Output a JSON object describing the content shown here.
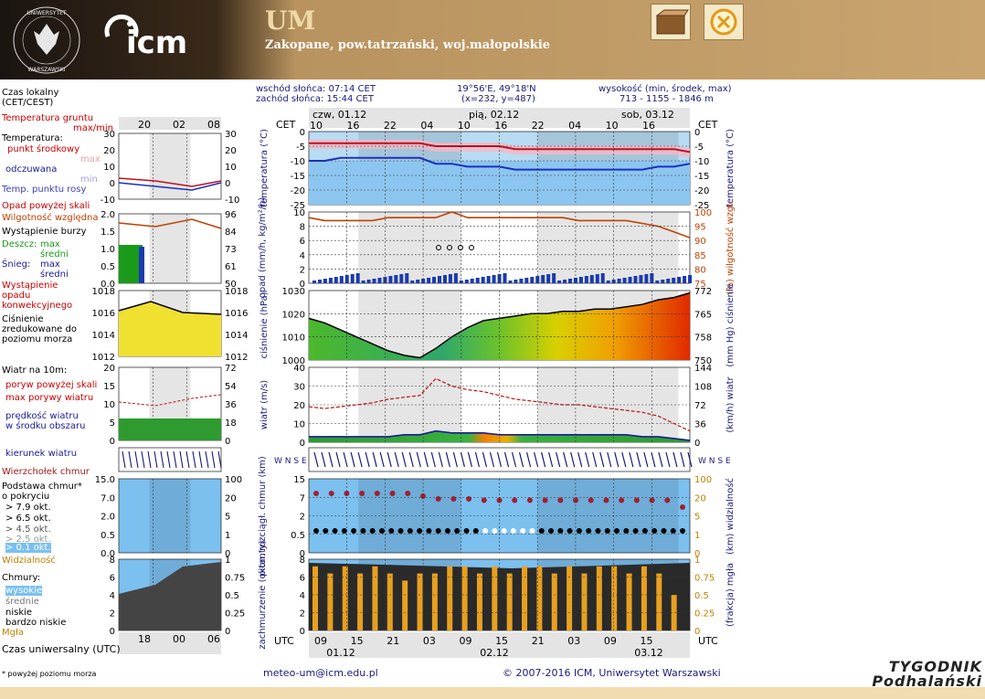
{
  "header": {
    "model": "UM",
    "location": "Zakopane, pow.tatrzański, woj.małopolskie",
    "logo_text": "UNIWERSYTET WARSZAWSKI",
    "icm_logo": "icm"
  },
  "info": {
    "sunrise": "wschód słońca: 07:14 CET",
    "sunset": "zachód słońca: 15:44 CET",
    "coords": "19°56'E, 49°18'N",
    "grid": "(x=232, y=487)",
    "height_label": "wysokość (min, środek, max)",
    "height_values": "713 - 1155 - 1846 m"
  },
  "footer": {
    "email": "meteo-um@icm.edu.pl",
    "copyright": "© 2007-2016 ICM, Uniwersytet Warszawski",
    "footnote": "* powyżej poziomu morza",
    "watermark": "TYGODNIK Podhalański"
  },
  "legend": {
    "czas_lokalny": "Czas lokalny (CET/CEST)",
    "temp_gruntu": "Temperatura gruntu",
    "maxmin": "max/min",
    "temperatura": "Temperatura:",
    "punkt_srodkowy": "punkt środkowy",
    "max": "max",
    "min": "min",
    "odczuwana": "odczuwana",
    "temp_punktu_rosy": "Temp. punktu rosy",
    "opad": "Opad powyżej skali",
    "wilgotnosc": "Wilgotność względna",
    "burza": "Wystąpienie burzy",
    "deszcz": "Deszcz:",
    "sredni": "średni",
    "snieg": "Śnieg:",
    "wyst_opadu": "Wystąpienie opadu konwekcyjnego",
    "cisnienie": "Ciśnienie zredukowane do poziomu morza",
    "wiatr_na": "Wiatr na 10m:",
    "poryw": "poryw powyżej skali",
    "max_porywy": "max porywy wiatru",
    "predkosc": "prędkość wiatru w środku obszaru",
    "kierunek": "kierunek wiatru",
    "wierzcholek": "Wierzchołek chmur",
    "podstawa": "Podstawa chmur* o pokryciu",
    "okt1": "> 7.9 okt.",
    "okt2": "> 6.5 okt.",
    "okt3": "> 4.5 okt.",
    "okt4": "> 2.5 okt.",
    "okt5": "> 0.1 okt.",
    "widzialnosc": "Widzialność",
    "chmury": "Chmury:",
    "wysokie": "wysokie",
    "srednie": "średnie",
    "niskie": "niskie",
    "bardzo_niskie": "bardzo niskie",
    "mgla": "Mgła",
    "czas_uniw": "Czas uniwersalny (UTC)"
  },
  "axes": {
    "cet": "CET",
    "utc": "UTC",
    "days_top": [
      "czw, 01.12",
      "pią, 02.12",
      "sob, 03.12"
    ],
    "days_bottom": [
      "01.12",
      "02.12",
      "03.12"
    ],
    "hours_top": [
      "10",
      "16",
      "22",
      "04",
      "10",
      "16",
      "22",
      "04",
      "10",
      "16"
    ],
    "hours_bottom": [
      "09",
      "15",
      "21",
      "03",
      "09",
      "15",
      "21",
      "03",
      "09",
      "15"
    ],
    "left_hours_top": [
      "20",
      "02",
      "08"
    ],
    "left_hours_bottom": [
      "18",
      "00",
      "06"
    ],
    "temp_label": "temperatura (°C)",
    "opad_label": "opad (mm/h, kg/m²/h)",
    "wilg_label": "(%) wilgotność wzgl.",
    "cisn_label": "ciśnienie (hPa)",
    "cisn_label_r": "(mm Hg) ciśnienie",
    "wiatr_label": "wiatr (m/s)",
    "wiatr_label_r": "(km/h) wiatr",
    "chmury_label": "pion. rozciągł. chmur (km)",
    "widz_label": "(km) widzialność",
    "zachm_label": "zachmurzenie (oktanty)",
    "mgla_label": "(frakcja) mgła",
    "compass": "W N S E"
  },
  "chart_data": [
    {
      "type": "line",
      "title": "temperatura",
      "ylim": [
        -25,
        0
      ],
      "ylabel": "temperatura (°C)",
      "yticks": [
        0,
        -5,
        -10,
        -15,
        -20,
        -25
      ],
      "series": [
        {
          "name": "punkt środkowy",
          "values": [
            -4,
            -4,
            -4,
            -4,
            -4,
            -4,
            -4,
            -4,
            -5,
            -5,
            -5,
            -5,
            -5,
            -6,
            -6,
            -6,
            -6,
            -6,
            -6,
            -6,
            -6,
            -6,
            -6,
            -6,
            -7
          ]
        },
        {
          "name": "odczuwana",
          "values": [
            -10,
            -10,
            -9,
            -9,
            -9,
            -9,
            -9,
            -9,
            -11,
            -11,
            -12,
            -12,
            -12,
            -13,
            -13,
            -13,
            -13,
            -13,
            -13,
            -13,
            -13,
            -13,
            -12,
            -12,
            -11
          ]
        }
      ]
    },
    {
      "type": "bar",
      "title": "opad / wilgotność",
      "ylim": [
        0,
        10
      ],
      "yticks": [
        0,
        2,
        4,
        6,
        8,
        10
      ],
      "y2ticks": [
        75,
        80,
        85,
        90,
        95,
        100
      ],
      "series": [
        {
          "name": "wilgotność",
          "values": [
            98,
            97,
            97,
            97,
            97,
            98,
            98,
            98,
            98,
            100,
            98,
            98,
            98,
            98,
            98,
            98,
            98,
            97,
            97,
            97,
            97,
            96,
            95,
            93,
            91
          ]
        }
      ]
    },
    {
      "type": "area",
      "title": "ciśnienie",
      "ylim": [
        1000,
        1030
      ],
      "yticks": [
        1000,
        1010,
        1020,
        1030
      ],
      "y2ticks": [
        750,
        758,
        765,
        772
      ],
      "series": [
        {
          "name": "ciśnienie",
          "values": [
            1018,
            1016,
            1013,
            1010,
            1007,
            1004,
            1002,
            1001,
            1005,
            1010,
            1014,
            1017,
            1018,
            1019,
            1020,
            1020,
            1021,
            1021,
            1022,
            1022,
            1023,
            1024,
            1026,
            1027,
            1029
          ]
        }
      ]
    },
    {
      "type": "line",
      "title": "wiatr",
      "ylim": [
        0,
        40
      ],
      "yticks": [
        0,
        10,
        20,
        30,
        40
      ],
      "y2ticks": [
        0,
        36,
        72,
        108,
        144
      ],
      "series": [
        {
          "name": "max porywy wiatru",
          "values": [
            19,
            18,
            19,
            20,
            21,
            23,
            24,
            25,
            34,
            30,
            28,
            27,
            25,
            23,
            22,
            21,
            20,
            20,
            19,
            18,
            17,
            16,
            14,
            10,
            6
          ]
        },
        {
          "name": "prędkość wiatru",
          "values": [
            3,
            3,
            3,
            3,
            3,
            3,
            4,
            4,
            6,
            5,
            5,
            5,
            4,
            4,
            4,
            4,
            4,
            4,
            4,
            4,
            4,
            3,
            3,
            2,
            1
          ]
        }
      ]
    },
    {
      "type": "scatter",
      "title": "chmury",
      "yticks": [
        0.0,
        0.5,
        2.0,
        7.0,
        15.0
      ],
      "y2ticks": [
        0,
        1,
        5,
        20,
        100
      ],
      "series": [
        {
          "name": "wierzchołek chmur",
          "values": [
            7,
            7,
            7,
            7,
            7,
            7,
            7,
            6,
            5,
            5,
            5,
            4.5,
            4.5,
            4.5,
            4.5,
            4.5,
            4.5,
            4.5,
            4.5,
            4.5,
            4.5,
            4.5,
            4.5,
            4.5,
            2
          ]
        }
      ]
    },
    {
      "type": "bar",
      "title": "zachmurzenie",
      "ylim": [
        0,
        8
      ],
      "yticks": [
        0,
        2,
        4,
        6,
        8
      ],
      "y2ticks": [
        0,
        0.25,
        0.5,
        0.75,
        1
      ],
      "series": [
        {
          "name": "mgła",
          "values": [
            0.9,
            0.8,
            0.9,
            0.8,
            0.9,
            0.8,
            0.7,
            0.8,
            0.8,
            0.9,
            0.9,
            0.8,
            0.9,
            0.8,
            0.9,
            0.9,
            0.8,
            0.9,
            0.8,
            0.9,
            0.9,
            0.8,
            0.9,
            0.8,
            0.5
          ]
        }
      ]
    }
  ]
}
